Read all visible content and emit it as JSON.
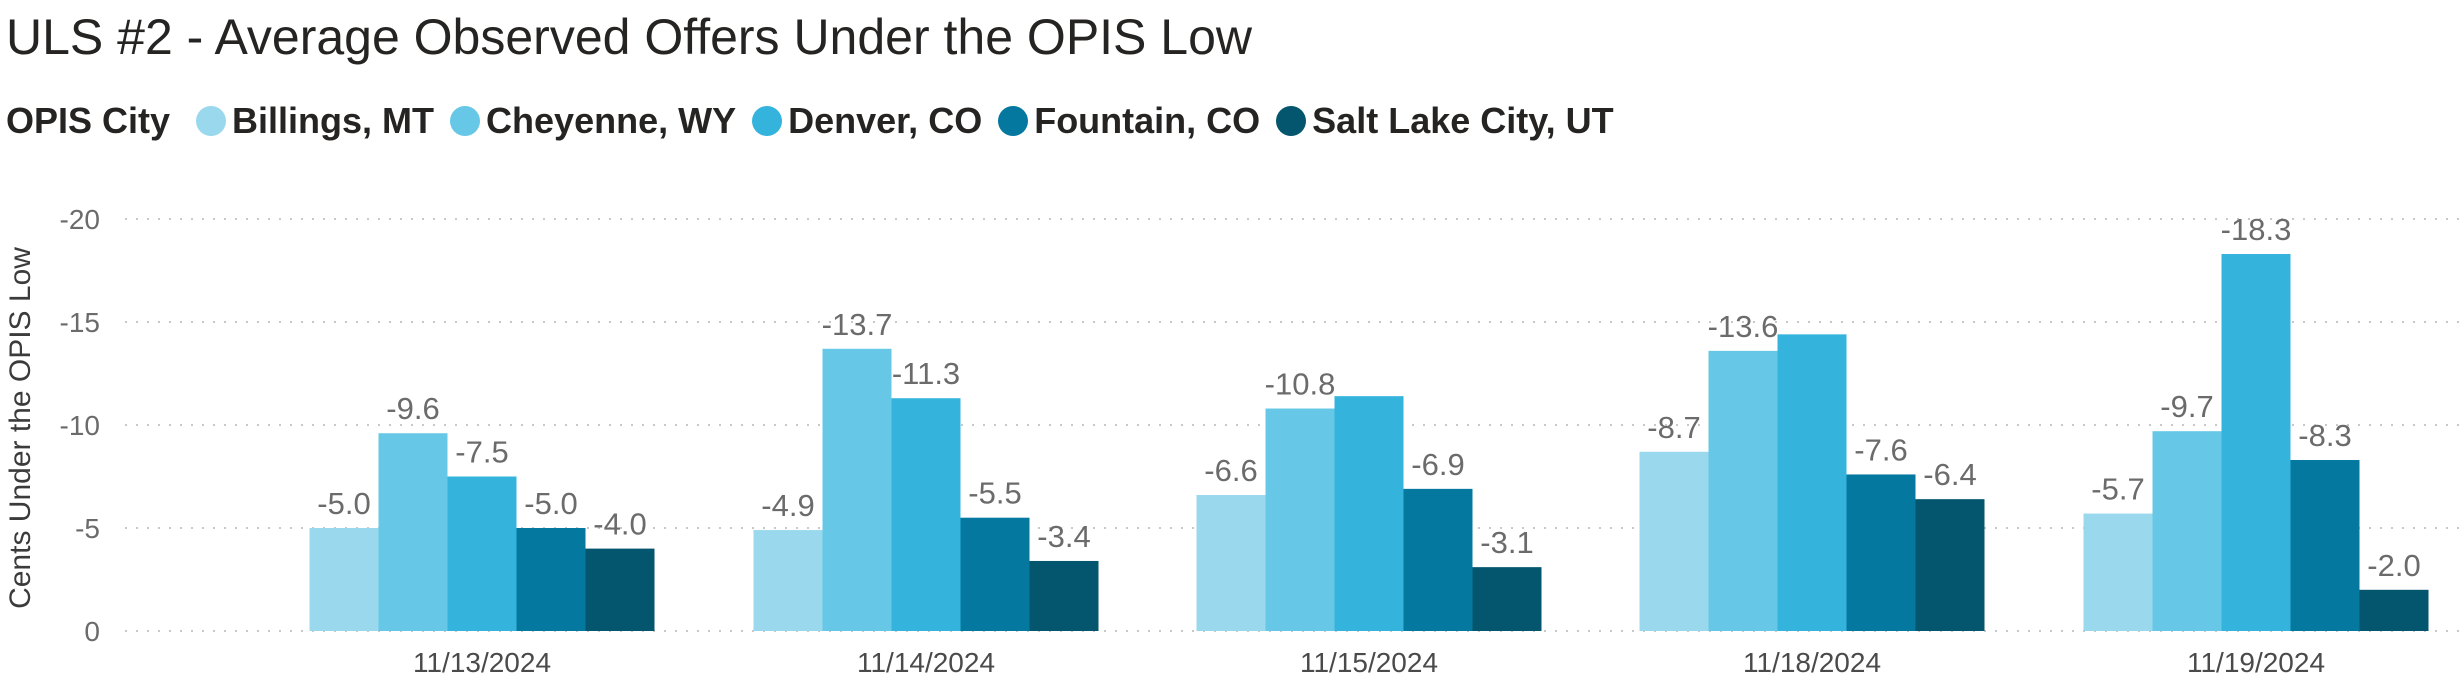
{
  "title": "ULS #2 - Average Observed Offers Under the OPIS Low",
  "legend": {
    "heading": "OPIS City",
    "items": [
      {
        "label": "Billings, MT",
        "color": "#9ad8ee"
      },
      {
        "label": "Cheyenne, WY",
        "color": "#66c8e6"
      },
      {
        "label": "Denver, CO",
        "color": "#34b3dd"
      },
      {
        "label": "Fountain, CO",
        "color": "#04789f"
      },
      {
        "label": "Salt Lake City, UT",
        "color": "#03566d"
      }
    ]
  },
  "chart_data": {
    "type": "bar",
    "title": "ULS #2 - Average Observed Offers Under the OPIS Low",
    "xlabel": "",
    "ylabel": "Cents Under the OPIS Low",
    "categories": [
      "11/13/2024",
      "11/14/2024",
      "11/15/2024",
      "11/18/2024",
      "11/19/2024"
    ],
    "y_ticks": [
      "-20",
      "-15",
      "-10",
      "-5",
      "0"
    ],
    "ylim": [
      0,
      -20
    ],
    "grid": true,
    "legend_position": "top-left",
    "series": [
      {
        "name": "Billings, MT",
        "color": "#9ad8ee",
        "values": [
          -5.0,
          -4.9,
          -6.6,
          -8.7,
          -5.7
        ],
        "labels": [
          "-5.0",
          "-4.9",
          "-6.6",
          "-8.7",
          "-5.7"
        ]
      },
      {
        "name": "Cheyenne, WY",
        "color": "#66c8e6",
        "values": [
          -9.6,
          -13.7,
          -10.8,
          -13.6,
          -9.7
        ],
        "labels": [
          "-9.6",
          "-13.7",
          "-10.8",
          "-13.6",
          "-9.7"
        ]
      },
      {
        "name": "Denver, CO",
        "color": "#34b3dd",
        "values": [
          -7.5,
          -11.3,
          -11.4,
          -14.4,
          -18.3
        ],
        "labels": [
          "-7.5",
          "-11.3",
          "",
          "",
          "-18.3"
        ]
      },
      {
        "name": "Fountain, CO",
        "color": "#04789f",
        "values": [
          -5.0,
          -5.5,
          -6.9,
          -7.6,
          -8.3
        ],
        "labels": [
          "-5.0",
          "-5.5",
          "-6.9",
          "-7.6",
          "-8.3"
        ]
      },
      {
        "name": "Salt Lake City, UT",
        "color": "#03566d",
        "values": [
          -4.0,
          -3.4,
          -3.1,
          -6.4,
          -2.0
        ],
        "labels": [
          "-4.0",
          "-3.4",
          "-3.1",
          "-6.4",
          "-2.0"
        ]
      }
    ]
  }
}
